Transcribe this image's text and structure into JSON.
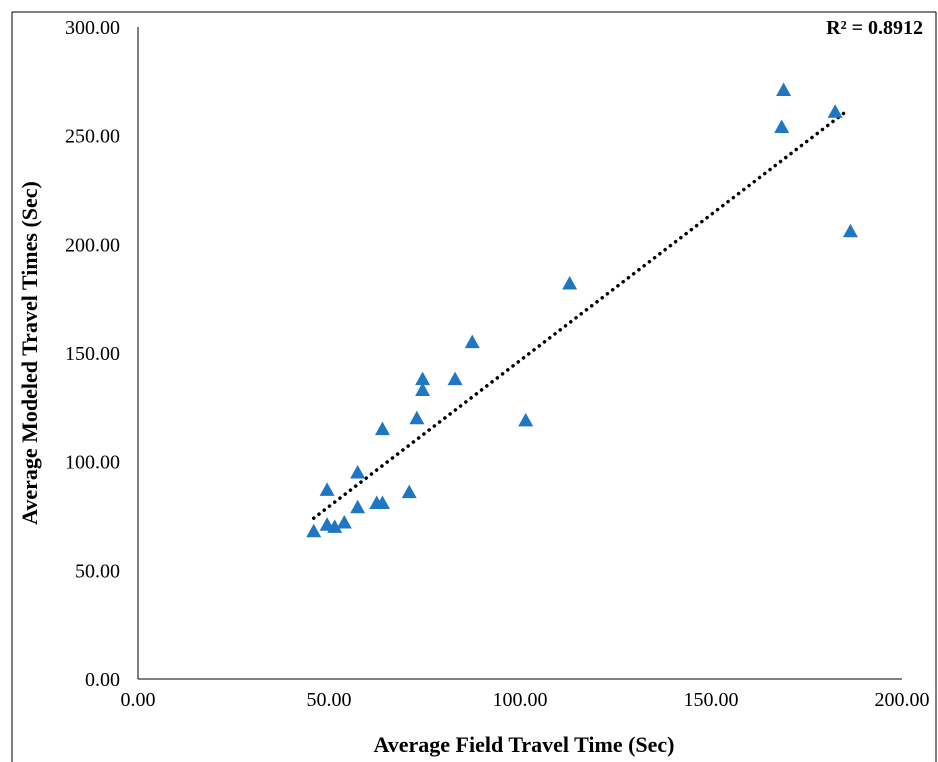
{
  "chart_data": {
    "type": "scatter",
    "xlabel": "Average Field Travel Time (Sec)",
    "ylabel": "Average Modeled Travel Times (Sec)",
    "xlim": [
      0,
      200
    ],
    "ylim": [
      0,
      300
    ],
    "x_ticks": [
      "0.00",
      "50.00",
      "100.00",
      "150.00",
      "200.00"
    ],
    "y_ticks": [
      "0.00",
      "50.00",
      "100.00",
      "150.00",
      "200.00",
      "250.00",
      "300.00"
    ],
    "x_tick_values": [
      0,
      50,
      100,
      150,
      200
    ],
    "y_tick_values": [
      0,
      50,
      100,
      150,
      200,
      250,
      300
    ],
    "grid": false,
    "annotation": "R² = 0.8912",
    "marker_color": "#1f77c4",
    "trendline": {
      "style": "dotted",
      "color": "#000000",
      "x": [
        46,
        186
      ],
      "y": [
        74,
        262
      ]
    },
    "points": [
      {
        "x": 46,
        "y": 68
      },
      {
        "x": 49.5,
        "y": 87
      },
      {
        "x": 49.5,
        "y": 71
      },
      {
        "x": 51.5,
        "y": 70
      },
      {
        "x": 54,
        "y": 72
      },
      {
        "x": 57.5,
        "y": 79
      },
      {
        "x": 57.5,
        "y": 95
      },
      {
        "x": 62.5,
        "y": 81
      },
      {
        "x": 64,
        "y": 81
      },
      {
        "x": 64,
        "y": 115
      },
      {
        "x": 71,
        "y": 86
      },
      {
        "x": 73,
        "y": 120
      },
      {
        "x": 74.5,
        "y": 133
      },
      {
        "x": 74.5,
        "y": 138
      },
      {
        "x": 83,
        "y": 138
      },
      {
        "x": 87.5,
        "y": 155
      },
      {
        "x": 101.5,
        "y": 119
      },
      {
        "x": 113,
        "y": 182
      },
      {
        "x": 168.5,
        "y": 254
      },
      {
        "x": 169,
        "y": 271
      },
      {
        "x": 182.5,
        "y": 261
      },
      {
        "x": 186.5,
        "y": 206
      }
    ]
  }
}
